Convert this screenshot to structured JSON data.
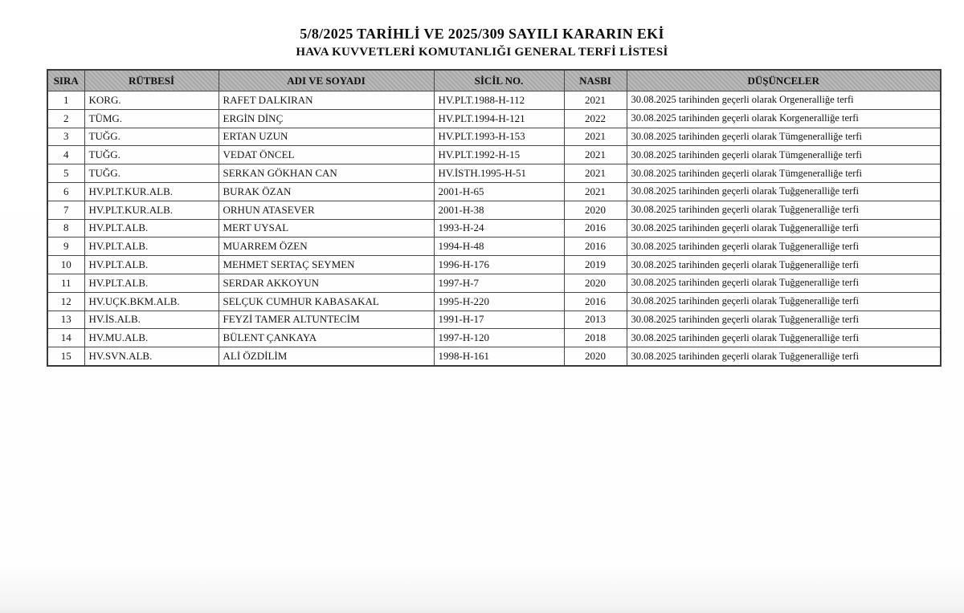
{
  "document": {
    "title_line1": "5/8/2025 TARİHLİ VE 2025/309 SAYILI KARARIN EKİ",
    "title_line2": "HAVA KUVVETLERİ KOMUTANLIĞI GENERAL TERFİ LİSTESİ"
  },
  "table": {
    "columns": [
      "SIRA",
      "RÜTBESİ",
      "ADI VE SOYADI",
      "SİCİL NO.",
      "NASBI",
      "DÜŞÜNCELER"
    ],
    "rows": [
      [
        "1",
        "KORG.",
        "RAFET DALKIRAN",
        "HV.PLT.1988-H-112",
        "2021",
        "30.08.2025 tarihinden geçerli olarak Orgeneralliğe terfi"
      ],
      [
        "2",
        "TÜMG.",
        "ERGİN DİNÇ",
        "HV.PLT.1994-H-121",
        "2022",
        "30.08.2025 tarihinden geçerli olarak Korgeneralliğe terfi"
      ],
      [
        "3",
        "TUĞG.",
        "ERTAN UZUN",
        "HV.PLT.1993-H-153",
        "2021",
        "30.08.2025 tarihinden geçerli olarak Tümgeneralliğe terfi"
      ],
      [
        "4",
        "TUĞG.",
        "VEDAT ÖNCEL",
        "HV.PLT.1992-H-15",
        "2021",
        "30.08.2025 tarihinden geçerli olarak Tümgeneralliğe terfi"
      ],
      [
        "5",
        "TUĞG.",
        "SERKAN GÖKHAN CAN",
        "HV.İSTH.1995-H-51",
        "2021",
        "30.08.2025 tarihinden geçerli olarak Tümgeneralliğe terfi"
      ],
      [
        "6",
        "HV.PLT.KUR.ALB.",
        "BURAK ÖZAN",
        "2001-H-65",
        "2021",
        "30.08.2025 tarihinden geçerli olarak Tuğgeneralliğe terfi"
      ],
      [
        "7",
        "HV.PLT.KUR.ALB.",
        "ORHUN ATASEVER",
        "2001-H-38",
        "2020",
        "30.08.2025 tarihinden geçerli olarak Tuğgeneralliğe terfi"
      ],
      [
        "8",
        "HV.PLT.ALB.",
        "MERT UYSAL",
        "1993-H-24",
        "2016",
        "30.08.2025 tarihinden geçerli olarak Tuğgeneralliğe terfi"
      ],
      [
        "9",
        "HV.PLT.ALB.",
        "MUARREM ÖZEN",
        "1994-H-48",
        "2016",
        "30.08.2025 tarihinden geçerli olarak Tuğgeneralliğe terfi"
      ],
      [
        "10",
        "HV.PLT.ALB.",
        "MEHMET SERTAÇ SEYMEN",
        "1996-H-176",
        "2019",
        "30.08.2025 tarihinden geçerli olarak Tuğgeneralliğe terfi"
      ],
      [
        "11",
        "HV.PLT.ALB.",
        "SERDAR AKKOYUN",
        "1997-H-7",
        "2020",
        "30.08.2025 tarihinden geçerli olarak Tuğgeneralliğe terfi"
      ],
      [
        "12",
        "HV.UÇK.BKM.ALB.",
        "SELÇUK CUMHUR KABASAKAL",
        "1995-H-220",
        "2016",
        "30.08.2025 tarihinden geçerli olarak Tuğgeneralliğe terfi"
      ],
      [
        "13",
        "HV.İS.ALB.",
        "FEYZİ TAMER ALTUNTECİM",
        "1991-H-17",
        "2013",
        "30.08.2025 tarihinden geçerli olarak Tuğgeneralliğe terfi"
      ],
      [
        "14",
        "HV.MU.ALB.",
        "BÜLENT ÇANKAYA",
        "1997-H-120",
        "2018",
        "30.08.2025 tarihinden geçerli olarak Tuğgeneralliğe terfi"
      ],
      [
        "15",
        "HV.SVN.ALB.",
        "ALİ ÖZDİLİM",
        "1998-H-161",
        "2020",
        "30.08.2025 tarihinden geçerli olarak Tuğgeneralliğe terfi"
      ]
    ]
  },
  "colors": {
    "header_bg": "#b2b2b2",
    "border": "#474747",
    "text": "#141414",
    "page_bg": "#ffffff"
  }
}
